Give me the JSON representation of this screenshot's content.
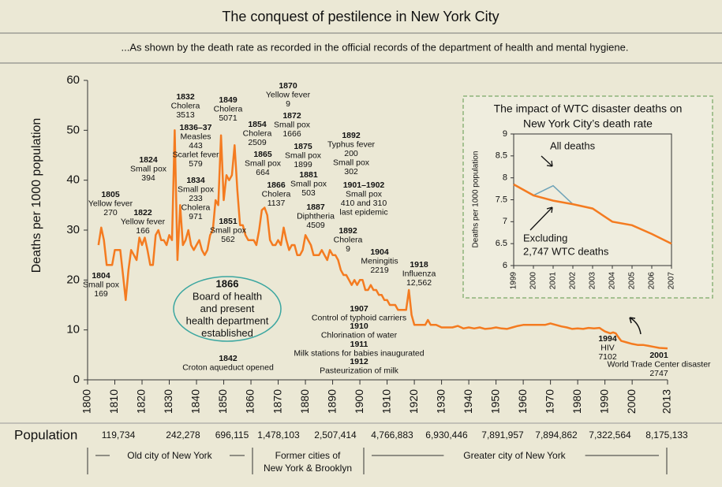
{
  "chart_data": {
    "type": "line",
    "title": "The conquest of pestilence in New York City",
    "subtitle": "...As shown by the death rate as recorded in the official records of the department of health and mental hygiene.",
    "y_label": "Deaths per 1000 population",
    "color": "#f47b20",
    "xlim": [
      1800,
      2013
    ],
    "xticks": [
      1800,
      1810,
      1820,
      1830,
      1840,
      1850,
      1860,
      1870,
      1880,
      1890,
      1900,
      1910,
      1920,
      1930,
      1940,
      1950,
      1960,
      1970,
      1980,
      1990,
      2000,
      2013
    ],
    "ylim": [
      0,
      60
    ],
    "yticks": [
      0,
      10,
      20,
      30,
      40,
      50,
      60
    ],
    "x": [
      1804,
      1805,
      1806,
      1807,
      1809,
      1810,
      1812,
      1813,
      1814,
      1815,
      1816,
      1817,
      1818,
      1819,
      1820,
      1821,
      1822,
      1823,
      1824,
      1825,
      1826,
      1827,
      1828,
      1829,
      1830,
      1831,
      1832,
      1833,
      1834,
      1835,
      1836,
      1837,
      1838,
      1839,
      1840,
      1841,
      1842,
      1843,
      1844,
      1845,
      1846,
      1847,
      1848,
      1849,
      1850,
      1851,
      1852,
      1853,
      1854,
      1855,
      1856,
      1857,
      1858,
      1859,
      1860,
      1861,
      1862,
      1863,
      1864,
      1865,
      1866,
      1867,
      1868,
      1869,
      1870,
      1871,
      1872,
      1873,
      1874,
      1875,
      1876,
      1877,
      1878,
      1879,
      1880,
      1881,
      1882,
      1883,
      1884,
      1885,
      1886,
      1887,
      1888,
      1889,
      1890,
      1891,
      1892,
      1893,
      1894,
      1895,
      1896,
      1897,
      1898,
      1899,
      1900,
      1901,
      1902,
      1903,
      1904,
      1905,
      1906,
      1907,
      1908,
      1909,
      1910,
      1911,
      1912,
      1913,
      1914,
      1915,
      1916,
      1917,
      1918,
      1919,
      1920,
      1921,
      1922,
      1923,
      1924,
      1925,
      1926,
      1928,
      1930,
      1932,
      1934,
      1936,
      1938,
      1940,
      1942,
      1944,
      1946,
      1948,
      1950,
      1952,
      1954,
      1956,
      1958,
      1960,
      1962,
      1964,
      1966,
      1968,
      1970,
      1972,
      1974,
      1976,
      1978,
      1980,
      1982,
      1984,
      1986,
      1988,
      1990,
      1992,
      1993,
      1994,
      1995,
      1996,
      1998,
      2000,
      2002,
      2004,
      2006,
      2008,
      2010,
      2013
    ],
    "values": [
      27,
      30.5,
      28,
      23,
      23,
      26,
      26,
      21,
      16,
      22,
      26,
      25,
      24,
      28.5,
      27,
      28.5,
      26,
      23,
      23,
      29,
      30,
      28,
      28,
      27,
      29,
      28,
      50,
      24,
      35,
      27,
      28,
      30,
      27,
      26,
      27,
      28,
      26,
      25,
      26,
      29,
      30,
      36,
      35,
      49,
      36,
      41,
      40,
      41,
      47,
      38,
      31,
      31,
      29,
      28,
      28,
      28,
      27,
      30,
      34,
      34.5,
      33,
      28,
      27,
      27,
      28,
      27,
      30.5,
      28,
      26,
      27,
      27,
      25,
      25,
      26,
      29,
      28,
      27,
      25,
      25,
      25,
      26,
      25,
      24,
      26,
      25,
      25,
      24,
      22,
      21,
      21,
      20,
      19,
      20,
      19,
      20,
      20,
      18,
      18,
      19,
      18,
      18,
      17,
      17,
      16,
      16,
      15,
      15,
      15,
      14,
      14,
      14,
      14,
      18,
      13,
      11,
      11,
      11,
      11,
      11,
      12,
      11,
      11,
      10.5,
      10.5,
      10.5,
      10.8,
      10.3,
      10.5,
      10.3,
      10.5,
      10.2,
      10.3,
      10.5,
      10.3,
      10.2,
      10.5,
      10.8,
      11,
      11,
      11,
      11,
      11,
      11.3,
      11,
      10.7,
      10.5,
      10.2,
      10.3,
      10.2,
      10.4,
      10.3,
      10.4,
      9.7,
      9.3,
      9.5,
      9.3,
      8.5,
      7.8,
      7.5,
      7.2,
      7.0,
      7.0,
      6.8,
      6.6,
      6.4,
      6.3
    ],
    "annotations": [
      {
        "year": "1804",
        "text": [
          "Small pox",
          "169"
        ]
      },
      {
        "year": "1805",
        "text": [
          "Yellow fever",
          "270"
        ]
      },
      {
        "year": "1822",
        "text": [
          "Yellow fever",
          "166"
        ]
      },
      {
        "year": "1824",
        "text": [
          "Small pox",
          "394"
        ]
      },
      {
        "year": "1832",
        "text": [
          "Cholera",
          "3513"
        ]
      },
      {
        "year": "1834",
        "text": [
          "Small pox",
          "233",
          "Cholera",
          "971"
        ]
      },
      {
        "year": "1836–37",
        "text": [
          "Measles",
          "443",
          "Scarlet fever",
          "579"
        ]
      },
      {
        "year": "1849",
        "text": [
          "Cholera",
          "5071"
        ]
      },
      {
        "year": "1851",
        "text": [
          "Small pox",
          "562"
        ]
      },
      {
        "year": "1854",
        "text": [
          "Cholera",
          "2509"
        ]
      },
      {
        "year": "1865",
        "text": [
          "Small pox",
          "664"
        ]
      },
      {
        "year": "1866",
        "text": [
          "Cholera",
          "1137"
        ]
      },
      {
        "year": "1870",
        "text": [
          "Yellow fever",
          "9"
        ]
      },
      {
        "year": "1872",
        "text": [
          "Small pox",
          "1666"
        ]
      },
      {
        "year": "1875",
        "text": [
          "Small pox",
          "1899"
        ]
      },
      {
        "year": "1881",
        "text": [
          "Small pox",
          "503"
        ]
      },
      {
        "year": "1887",
        "text": [
          "Diphtheria",
          "4509"
        ]
      },
      {
        "year": "1892",
        "text": [
          "Typhus fever",
          "200",
          "Small pox",
          "302"
        ]
      },
      {
        "year": "1901–1902",
        "text": [
          "Small pox",
          "410 and 310",
          "last epidemic"
        ]
      },
      {
        "year": "1892",
        "text": [
          "Cholera",
          "9"
        ]
      },
      {
        "year": "1904",
        "text": [
          "Meningitis",
          "2219"
        ]
      },
      {
        "year": "1918",
        "text": [
          "Influenza",
          "12,562"
        ]
      },
      {
        "year": "1994",
        "text": [
          "HIV",
          "7102"
        ]
      },
      {
        "year": "2001",
        "text": [
          "World Trade Center disaster",
          "2747"
        ]
      },
      {
        "year": "1842",
        "text": [
          "Croton aqueduct opened"
        ]
      },
      {
        "year": "1907",
        "text": [
          "Control of typhoid carriers"
        ]
      },
      {
        "year": "1910",
        "text": [
          "Chlorination of water"
        ]
      },
      {
        "year": "1911",
        "text": [
          "Milk stations for babies inaugurated"
        ]
      },
      {
        "year": "1912",
        "text": [
          "Pasteurization of milk"
        ]
      }
    ],
    "callout": {
      "year": "1866",
      "text": [
        "Board of health",
        "and present",
        "health department",
        "established"
      ]
    },
    "population": {
      "label": "Population",
      "values": [
        "119,734",
        "242,278",
        "696,115",
        "1,478,103",
        "2,507,414",
        "4,766,883",
        "6,930,446",
        "7,891,957",
        "7,894,862",
        "7,322,564",
        "8,175,133"
      ]
    },
    "eras": [
      [
        "Old city of New York"
      ],
      [
        "Former cities of",
        "New York & Brooklyn"
      ],
      [
        "Greater city of New York"
      ]
    ],
    "inset": {
      "type": "line",
      "title": [
        "The impact of WTC disaster deaths on",
        "New York City’s death rate"
      ],
      "y_label": "Deaths per 1000 population",
      "categories": [
        "1999",
        "2000",
        "2001",
        "2002",
        "2003",
        "2004",
        "2005",
        "2006",
        "2007"
      ],
      "ylim": [
        6,
        9
      ],
      "yticks": [
        6,
        6.5,
        7,
        7.5,
        8,
        8.5,
        9
      ],
      "series": [
        {
          "name": "All deaths",
          "color": "#6fa3b8",
          "values": [
            null,
            7.6,
            7.82,
            7.4,
            null,
            null,
            null,
            null,
            null
          ]
        },
        {
          "name": "Excluding",
          "note": "2,747 WTC deaths",
          "color": "#f47b20",
          "values": [
            7.85,
            7.6,
            7.48,
            7.4,
            7.3,
            7.0,
            6.92,
            6.72,
            6.5
          ]
        }
      ]
    }
  }
}
